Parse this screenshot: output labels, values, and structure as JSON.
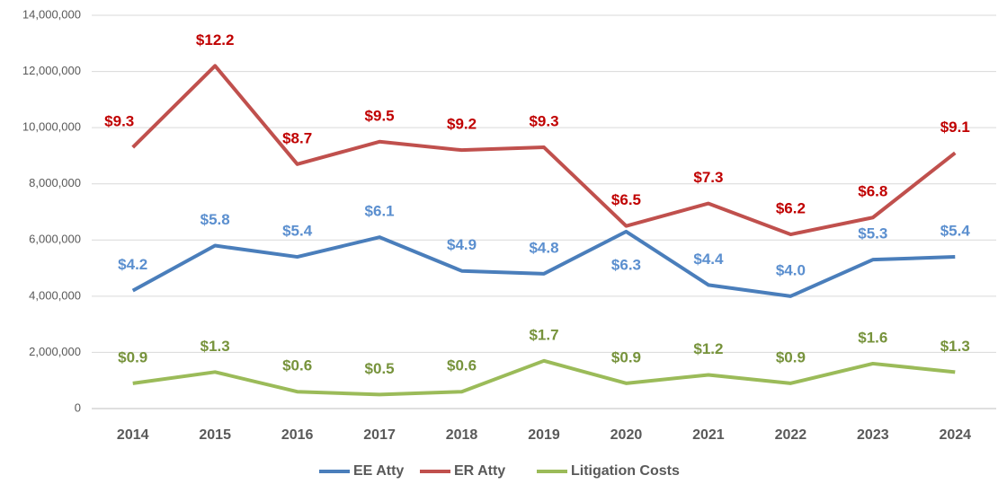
{
  "chart_data": {
    "type": "line",
    "categories": [
      "2014",
      "2015",
      "2016",
      "2017",
      "2018",
      "2019",
      "2020",
      "2021",
      "2022",
      "2023",
      "2024"
    ],
    "series": [
      {
        "name": "EE Atty",
        "color": "#4a7ebb",
        "label_color": "#5b8fcf",
        "values": [
          4200000,
          5800000,
          5400000,
          6100000,
          4900000,
          4800000,
          6300000,
          4400000,
          4000000,
          5300000,
          5400000
        ],
        "value_labels": [
          "$4.2",
          "$5.8",
          "$5.4",
          "$6.1",
          "$4.9",
          "$4.8",
          "$6.3",
          "$4.4",
          "$4.0",
          "$5.3",
          "$5.4"
        ]
      },
      {
        "name": "ER Atty",
        "color": "#c0504d",
        "label_color": "#c00000",
        "values": [
          9300000,
          12200000,
          8700000,
          9500000,
          9200000,
          9300000,
          6500000,
          7300000,
          6200000,
          6800000,
          9100000
        ],
        "value_labels": [
          "$9.3",
          "$12.2",
          "$8.7",
          "$9.5",
          "$9.2",
          "$9.3",
          "$6.5",
          "$7.3",
          "$6.2",
          "$6.8",
          "$9.1"
        ]
      },
      {
        "name": "Litigation Costs",
        "color": "#9bbb59",
        "label_color": "#77933c",
        "values": [
          900000,
          1300000,
          600000,
          500000,
          600000,
          1700000,
          900000,
          1200000,
          900000,
          1600000,
          1300000
        ],
        "value_labels": [
          "$0.9",
          "$1.3",
          "$0.6",
          "$0.5",
          "$0.6",
          "$1.7",
          "$0.9",
          "$1.2",
          "$0.9",
          "$1.6",
          "$1.3"
        ]
      }
    ],
    "ylim": [
      0,
      14000000
    ],
    "yticks": [
      {
        "value": 0,
        "label": "0"
      },
      {
        "value": 2000000,
        "label": "2,000,000"
      },
      {
        "value": 4000000,
        "label": "4,000,000"
      },
      {
        "value": 6000000,
        "label": "6,000,000"
      },
      {
        "value": 8000000,
        "label": "8,000,000"
      },
      {
        "value": 10000000,
        "label": "10,000,000"
      },
      {
        "value": 12000000,
        "label": "12,000,000"
      },
      {
        "value": 14000000,
        "label": "14,000,000"
      }
    ],
    "grid": true,
    "legend": "bottom"
  }
}
